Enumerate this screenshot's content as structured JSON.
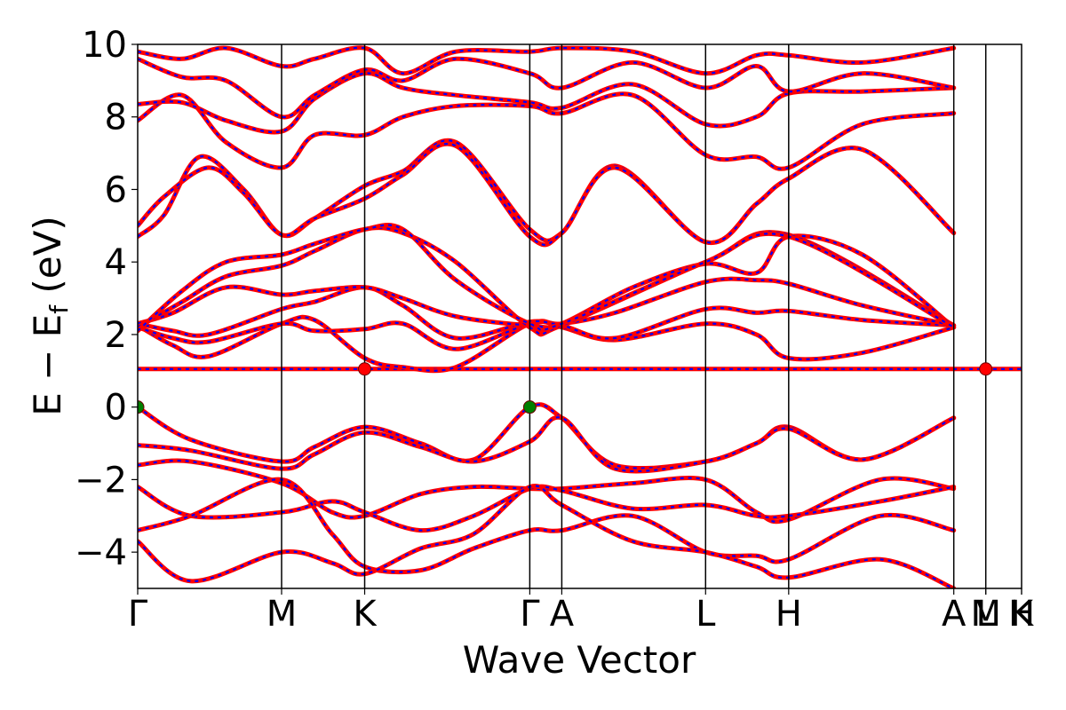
{
  "chart_data": {
    "type": "line",
    "title": "",
    "xlabel": "Wave Vector",
    "ylabel": "E − E_f (eV)",
    "ylabel_parts": {
      "main": "E − E",
      "sub": "f",
      "unit": " (eV)"
    },
    "ylim": [
      -5,
      10
    ],
    "yticks": [
      10,
      8,
      6,
      4,
      2,
      0,
      -2,
      -4
    ],
    "ytick_labels": [
      "10",
      "8",
      "6",
      "4",
      "2",
      "0",
      "−2",
      "−4"
    ],
    "xlim": [
      0,
      1
    ],
    "kpoints": [
      {
        "label": "Γ",
        "x": 0.0
      },
      {
        "label": "M",
        "x": 0.1628
      },
      {
        "label": "K",
        "x": 0.2568
      },
      {
        "label": "Γ",
        "x": 0.4436
      },
      {
        "label": "A",
        "x": 0.4798
      },
      {
        "label": "L",
        "x": 0.6425
      },
      {
        "label": "H",
        "x": 0.7365
      },
      {
        "label": "A",
        "x": 0.9233
      },
      {
        "label": "L",
        "x": 0.9595
      },
      {
        "label": "M",
        "x": 0.9595
      },
      {
        "label": "K",
        "x": 1.0
      },
      {
        "label": "H",
        "x": 1.0
      }
    ],
    "grid": false,
    "series": [
      {
        "color": "#ff0000",
        "style": "solid"
      },
      {
        "color": "#0000ff",
        "style": "dashed"
      }
    ],
    "bands": [
      {
        "x": [
          0,
          0.1628,
          0.2568,
          0.4436,
          0.4798,
          0.6425,
          0.7365,
          0.9233,
          0.9595,
          1.0
        ],
        "y": [
          1.05,
          1.05,
          1.05,
          1.05,
          1.05,
          1.05,
          1.05,
          1.05,
          1.05,
          1.05
        ]
      },
      {
        "x": [
          0,
          0.06,
          0.1628,
          0.2,
          0.2568,
          0.32,
          0.38,
          0.4436,
          0.4798,
          0.54,
          0.6425,
          0.7,
          0.7365,
          0.82,
          0.9233
        ],
        "y": [
          0.0,
          -0.9,
          -1.5,
          -1.1,
          -0.55,
          -1.0,
          -1.45,
          0.0,
          -0.3,
          -1.6,
          -1.5,
          -1.0,
          -0.55,
          -1.45,
          -0.3
        ]
      },
      {
        "x": [
          0,
          0.06,
          0.1628,
          0.2,
          0.2568,
          0.32,
          0.38,
          0.4436,
          0.4798,
          0.54,
          0.6425,
          0.7,
          0.7365,
          0.82,
          0.9233
        ],
        "y": [
          -1.05,
          -1.2,
          -1.7,
          -1.3,
          -0.7,
          -1.1,
          -1.5,
          -0.95,
          -0.3,
          -1.7,
          -1.5,
          -1.0,
          -0.6,
          -1.45,
          -0.3
        ]
      },
      {
        "x": [
          0,
          0.06,
          0.1628,
          0.22,
          0.2568,
          0.32,
          0.38,
          0.4436,
          0.4798,
          0.56,
          0.6425,
          0.7,
          0.7365,
          0.84,
          0.9233
        ],
        "y": [
          -1.6,
          -1.5,
          -2.1,
          -2.9,
          -3.0,
          -2.4,
          -2.2,
          -2.25,
          -2.25,
          -2.1,
          -2.0,
          -2.9,
          -3.1,
          -2.0,
          -2.25
        ]
      },
      {
        "x": [
          0,
          0.06,
          0.1628,
          0.22,
          0.2568,
          0.32,
          0.38,
          0.4436,
          0.4798,
          0.56,
          0.6425,
          0.7,
          0.7365,
          0.84,
          0.9233
        ],
        "y": [
          -2.2,
          -3.0,
          -2.9,
          -2.6,
          -2.9,
          -3.4,
          -3.0,
          -2.25,
          -2.3,
          -2.8,
          -2.7,
          -3.0,
          -3.0,
          -2.6,
          -2.2
        ]
      },
      {
        "x": [
          0,
          0.06,
          0.1628,
          0.22,
          0.2568,
          0.32,
          0.38,
          0.4436,
          0.4798,
          0.56,
          0.6425,
          0.7,
          0.7365,
          0.84,
          0.9233
        ],
        "y": [
          -3.4,
          -3.0,
          -2.0,
          -3.5,
          -4.4,
          -4.5,
          -3.9,
          -3.4,
          -3.4,
          -3.0,
          -4.0,
          -4.1,
          -4.2,
          -3.0,
          -3.4
        ]
      },
      {
        "x": [
          0,
          0.06,
          0.1628,
          0.22,
          0.2568,
          0.32,
          0.38,
          0.4436,
          0.4798,
          0.56,
          0.6425,
          0.7,
          0.7365,
          0.84,
          0.9233
        ],
        "y": [
          -3.7,
          -4.8,
          -4.0,
          -4.3,
          -4.6,
          -3.9,
          -3.5,
          -2.2,
          -2.7,
          -3.7,
          -4.0,
          -4.4,
          -4.7,
          -4.2,
          -5.0
        ]
      },
      {
        "x": [
          0,
          0.04,
          0.08,
          0.1628,
          0.2,
          0.2568,
          0.3,
          0.36,
          0.4436,
          0.4798,
          0.54,
          0.6425,
          0.7,
          0.7365,
          0.82,
          0.9233
        ],
        "y": [
          2.25,
          1.7,
          1.4,
          2.3,
          2.4,
          1.35,
          1.1,
          1.1,
          2.3,
          2.2,
          1.85,
          2.3,
          2.0,
          1.35,
          1.5,
          2.2
        ]
      },
      {
        "x": [
          0,
          0.04,
          0.08,
          0.1628,
          0.2,
          0.2568,
          0.3,
          0.36,
          0.4436,
          0.4798,
          0.54,
          0.6425,
          0.7,
          0.7365,
          0.82,
          0.9233
        ],
        "y": [
          2.2,
          1.9,
          1.8,
          2.3,
          2.1,
          2.15,
          2.3,
          1.6,
          2.3,
          2.25,
          1.9,
          2.7,
          2.6,
          2.65,
          2.4,
          2.25
        ]
      },
      {
        "x": [
          0,
          0.04,
          0.08,
          0.1628,
          0.2,
          0.2568,
          0.3,
          0.36,
          0.4436,
          0.4798,
          0.54,
          0.6425,
          0.7,
          0.7365,
          0.82,
          0.9233
        ],
        "y": [
          2.3,
          2.1,
          2.0,
          2.7,
          2.9,
          3.3,
          2.8,
          1.9,
          2.35,
          2.3,
          2.6,
          3.45,
          3.5,
          3.4,
          2.8,
          2.25
        ]
      },
      {
        "x": [
          0,
          0.04,
          0.1,
          0.1628,
          0.2,
          0.2568,
          0.3,
          0.36,
          0.4436,
          0.4798,
          0.56,
          0.6425,
          0.7,
          0.7365,
          0.82,
          0.9233
        ],
        "y": [
          2.3,
          2.6,
          3.3,
          3.1,
          3.2,
          3.3,
          3.0,
          2.5,
          2.25,
          2.3,
          3.3,
          3.95,
          3.7,
          4.7,
          4.2,
          2.2
        ]
      },
      {
        "x": [
          0,
          0.05,
          0.1,
          0.1628,
          0.2,
          0.2568,
          0.3,
          0.36,
          0.4436,
          0.4798,
          0.6425,
          0.7365,
          0.9233
        ],
        "y": [
          2.2,
          2.9,
          3.6,
          3.9,
          4.3,
          4.9,
          4.8,
          4.0,
          2.2,
          2.25,
          4.0,
          4.75,
          2.25
        ]
      },
      {
        "x": [
          0,
          0.05,
          0.1,
          0.1628,
          0.2,
          0.2568,
          0.3,
          0.36,
          0.4436,
          0.4798,
          0.6425,
          0.7365,
          0.9233
        ],
        "y": [
          2.1,
          3.2,
          4.0,
          4.2,
          4.5,
          4.9,
          4.9,
          3.5,
          2.3,
          2.3,
          4.0,
          4.7,
          2.2
        ]
      },
      {
        "x": [
          0,
          0.03,
          0.07,
          0.12,
          0.1628,
          0.2,
          0.2568,
          0.3,
          0.36,
          0.4436,
          0.4798,
          0.54,
          0.6425,
          0.7,
          0.7365,
          0.82,
          0.9233
        ],
        "y": [
          4.7,
          5.3,
          6.9,
          6.0,
          4.75,
          5.2,
          6.1,
          6.5,
          7.3,
          4.9,
          4.8,
          6.65,
          4.55,
          5.6,
          6.3,
          7.1,
          4.8
        ]
      },
      {
        "x": [
          0,
          0.03,
          0.08,
          0.12,
          0.1628,
          0.2,
          0.2568,
          0.3,
          0.36,
          0.4436,
          0.4798,
          0.54,
          0.6425,
          0.7,
          0.7365,
          0.82,
          0.9233
        ],
        "y": [
          5.0,
          5.8,
          6.6,
          5.9,
          4.75,
          5.2,
          5.75,
          6.4,
          7.2,
          4.7,
          4.8,
          6.6,
          4.55,
          5.6,
          6.3,
          7.1,
          4.8
        ]
      },
      {
        "x": [
          0,
          0.05,
          0.1,
          0.1628,
          0.2,
          0.2568,
          0.3,
          0.36,
          0.4436,
          0.4798,
          0.56,
          0.6425,
          0.7,
          0.7365,
          0.82,
          0.9233
        ],
        "y": [
          7.9,
          8.6,
          7.3,
          6.6,
          7.5,
          7.5,
          8.0,
          8.3,
          8.3,
          8.1,
          8.6,
          6.95,
          6.9,
          6.6,
          7.8,
          8.1
        ]
      },
      {
        "x": [
          0,
          0.05,
          0.1,
          0.1628,
          0.2,
          0.2568,
          0.3,
          0.36,
          0.4436,
          0.4798,
          0.56,
          0.6425,
          0.7,
          0.7365,
          0.82,
          0.9233
        ],
        "y": [
          8.35,
          8.4,
          7.9,
          7.6,
          8.5,
          9.2,
          8.8,
          8.6,
          8.4,
          8.25,
          8.9,
          7.8,
          8.0,
          8.65,
          8.7,
          8.8
        ]
      },
      {
        "x": [
          0,
          0.05,
          0.1,
          0.1628,
          0.2,
          0.2568,
          0.3,
          0.36,
          0.4436,
          0.4798,
          0.56,
          0.6425,
          0.7,
          0.7365,
          0.82,
          0.9233
        ],
        "y": [
          9.6,
          9.1,
          9.0,
          8.0,
          8.6,
          9.3,
          9.0,
          9.6,
          9.2,
          8.8,
          9.5,
          8.8,
          9.4,
          8.7,
          9.2,
          8.8
        ]
      },
      {
        "x": [
          0,
          0.05,
          0.1,
          0.1628,
          0.2,
          0.2568,
          0.3,
          0.36,
          0.4436,
          0.4798,
          0.56,
          0.6425,
          0.7,
          0.7365,
          0.82,
          0.9233
        ],
        "y": [
          9.8,
          9.6,
          9.9,
          9.4,
          9.6,
          9.9,
          9.2,
          9.8,
          9.8,
          9.9,
          9.8,
          9.2,
          9.7,
          9.7,
          9.5,
          9.9
        ]
      }
    ],
    "markers": [
      {
        "x": 0.0,
        "y": 0.0,
        "color": "#008000"
      },
      {
        "x": 0.4436,
        "y": 0.0,
        "color": "#008000"
      },
      {
        "x": 0.2568,
        "y": 1.05,
        "color": "#ff0000"
      },
      {
        "x": 0.9595,
        "y": 1.05,
        "color": "#ff0000"
      }
    ]
  }
}
